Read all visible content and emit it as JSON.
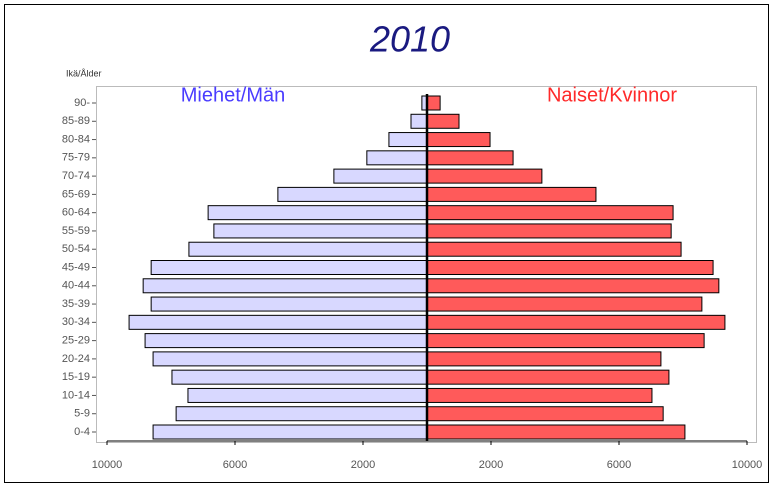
{
  "chart_data": {
    "type": "pyramid",
    "title": "2010",
    "y_axis_label": "Ikä/Ålder",
    "categories": [
      "0-4",
      "5-9",
      "10-14",
      "15-19",
      "20-24",
      "25-29",
      "30-34",
      "35-39",
      "40-44",
      "45-49",
      "50-54",
      "55-59",
      "60-64",
      "65-69",
      "70-74",
      "75-79",
      "80-84",
      "85-89",
      "90-"
    ],
    "series": [
      {
        "name": "Miehet/Män",
        "color": "#d8d8ff",
        "label_color": "#4a3cff",
        "side": "left",
        "values": [
          8560,
          7840,
          7470,
          7970,
          8560,
          8810,
          9310,
          8620,
          8870,
          8620,
          7440,
          6660,
          6840,
          4660,
          2910,
          1880,
          1190,
          500,
          160
        ]
      },
      {
        "name": "Naiset/Kvinnor",
        "color": "#ff5a5a",
        "label_color": "#ff2a2a",
        "side": "right",
        "values": [
          8060,
          7380,
          7030,
          7560,
          7310,
          8660,
          9310,
          8590,
          9120,
          8940,
          7940,
          7630,
          7690,
          5280,
          3590,
          2690,
          1970,
          1000,
          410
        ]
      }
    ],
    "xlim": [
      0,
      10000
    ],
    "xticks": [
      2000,
      6000,
      10000
    ]
  }
}
